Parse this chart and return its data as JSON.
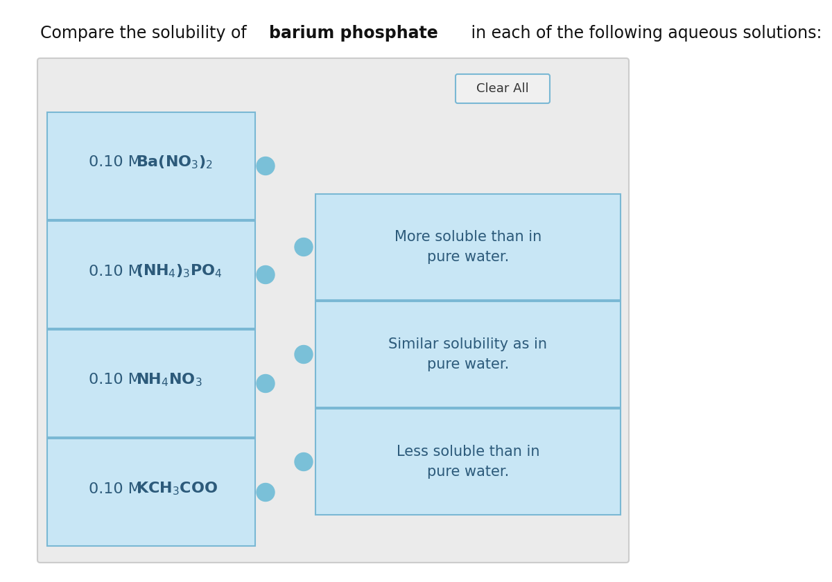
{
  "title_fontsize": 17,
  "background_color": "#ffffff",
  "panel_bg": "#ebebeb",
  "panel_edge": "#cccccc",
  "box_fill": "#c8e6f5",
  "box_edge": "#7ab8d4",
  "text_color": "#2c5a7a",
  "dot_color": "#7ac0d8",
  "left_labels_prefix": "0.10 M ",
  "left_labels_bold": [
    "Ba(NO$_3$)$_2$",
    "(NH$_4$)$_3$PO$_4$",
    "NH$_4$NO$_3$",
    "KCH$_3$COO"
  ],
  "right_labels": [
    "More soluble than in\npure water.",
    "Similar solubility as in\npure water.",
    "Less soluble than in\npure water."
  ],
  "clear_all_text": "Clear All",
  "clear_btn_fill": "#f0f0f0",
  "clear_btn_edge": "#7ab8d4"
}
